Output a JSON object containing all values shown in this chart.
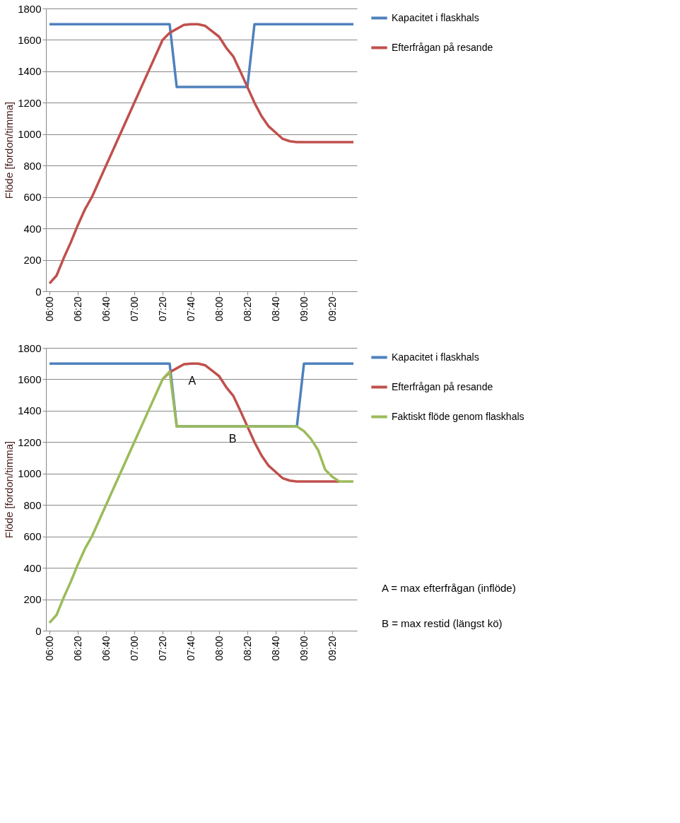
{
  "chart_data": [
    {
      "type": "line",
      "ylabel": "Flöde [fordon/timma]",
      "categories": [
        "06:00",
        null,
        null,
        null,
        "06:20",
        null,
        null,
        null,
        "06:40",
        null,
        null,
        null,
        "07:00",
        null,
        null,
        null,
        "07:20",
        null,
        null,
        null,
        "07:40",
        null,
        null,
        null,
        "08:00",
        null,
        null,
        null,
        "08:20",
        null,
        null,
        null,
        "08:40",
        null,
        null,
        null,
        "09:00",
        null,
        null,
        null,
        "09:20",
        null,
        null,
        null
      ],
      "ylim": [
        0,
        1800
      ],
      "yticks": [
        0,
        200,
        400,
        600,
        800,
        1000,
        1200,
        1400,
        1600,
        1800
      ],
      "grid": "y",
      "legend": "right",
      "series": [
        {
          "name": "Kapacitet i flaskhals",
          "color": "#4f81bd",
          "values": [
            1700,
            1700,
            1700,
            1700,
            1700,
            1700,
            1700,
            1700,
            1700,
            1700,
            1700,
            1700,
            1700,
            1700,
            1700,
            1700,
            1700,
            1700,
            1300,
            1300,
            1300,
            1300,
            1300,
            1300,
            1300,
            1300,
            1300,
            1300,
            1300,
            1700,
            1700,
            1700,
            1700,
            1700,
            1700,
            1700,
            1700,
            1700,
            1700,
            1700,
            1700,
            1700,
            1700,
            1700
          ]
        },
        {
          "name": "Efterfrågan på resande",
          "color": "#c0504d",
          "values": [
            50,
            100,
            210,
            310,
            420,
            520,
            600,
            700,
            800,
            900,
            1000,
            1100,
            1200,
            1300,
            1400,
            1500,
            1600,
            1645,
            1670,
            1695,
            1700,
            1700,
            1690,
            1655,
            1620,
            1550,
            1495,
            1400,
            1300,
            1200,
            1115,
            1050,
            1010,
            970,
            955,
            950,
            950,
            950,
            950,
            950,
            950,
            950,
            950,
            950
          ]
        }
      ]
    },
    {
      "type": "line",
      "ylabel": "Flöde [fordon/timma]",
      "categories": [
        "06:00",
        null,
        null,
        null,
        "06:20",
        null,
        null,
        null,
        "06:40",
        null,
        null,
        null,
        "07:00",
        null,
        null,
        null,
        "07:20",
        null,
        null,
        null,
        "07:40",
        null,
        null,
        null,
        "08:00",
        null,
        null,
        null,
        "08:20",
        null,
        null,
        null,
        "08:40",
        null,
        null,
        null,
        "09:00",
        null,
        null,
        null,
        "09:20",
        null,
        null,
        null
      ],
      "ylim": [
        0,
        1800
      ],
      "yticks": [
        0,
        200,
        400,
        600,
        800,
        1000,
        1200,
        1400,
        1600,
        1800
      ],
      "grid": "y",
      "legend": "right",
      "series": [
        {
          "name": "Kapacitet i flaskhals",
          "color": "#4f81bd",
          "values": [
            1700,
            1700,
            1700,
            1700,
            1700,
            1700,
            1700,
            1700,
            1700,
            1700,
            1700,
            1700,
            1700,
            1700,
            1700,
            1700,
            1700,
            1700,
            1300,
            1300,
            1300,
            1300,
            1300,
            1300,
            1300,
            1300,
            1300,
            1300,
            1300,
            1300,
            1300,
            1300,
            1300,
            1300,
            1300,
            1300,
            1700,
            1700,
            1700,
            1700,
            1700,
            1700,
            1700,
            1700
          ]
        },
        {
          "name": "Efterfrågan på resande",
          "color": "#c0504d",
          "values": [
            null,
            null,
            null,
            null,
            null,
            null,
            null,
            null,
            null,
            null,
            null,
            null,
            null,
            null,
            null,
            null,
            1600,
            1645,
            1670,
            1695,
            1700,
            1700,
            1690,
            1655,
            1620,
            1550,
            1495,
            1400,
            1300,
            1200,
            1115,
            1050,
            1010,
            970,
            955,
            950,
            950,
            950,
            950,
            950,
            950,
            950,
            null,
            null
          ]
        },
        {
          "name": "Faktiskt flöde genom flaskhals",
          "color": "#9bbb59",
          "values": [
            50,
            100,
            210,
            310,
            420,
            520,
            600,
            700,
            800,
            900,
            1000,
            1100,
            1200,
            1300,
            1400,
            1500,
            1600,
            1650,
            1300,
            1300,
            1300,
            1300,
            1300,
            1300,
            1300,
            1300,
            1300,
            1300,
            1300,
            1300,
            1300,
            1300,
            1300,
            1300,
            1300,
            1300,
            1270,
            1220,
            1150,
            1025,
            980,
            950,
            950,
            950
          ]
        }
      ],
      "annotations": [
        "A",
        "B",
        "A = max efterfrågan (inflöde)",
        "B = max restid (längst kö)"
      ]
    }
  ]
}
